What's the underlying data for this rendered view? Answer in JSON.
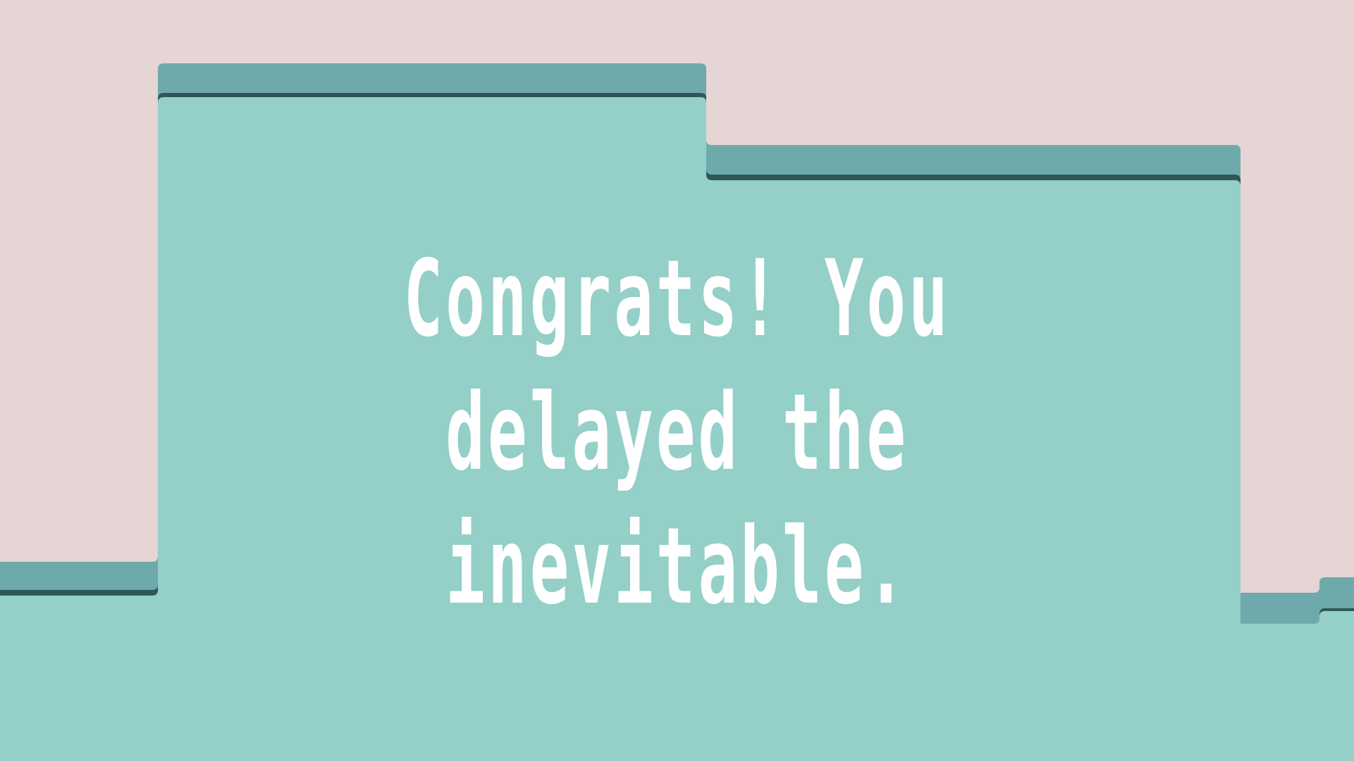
{
  "scene": {
    "message_lines": [
      "Congrats! You",
      "delayed the",
      "inevitable."
    ]
  },
  "colors": {
    "background": "#e5d5d5",
    "terrain_fill": "#94cfc8",
    "terrain_edge": "#6eaaab",
    "terrain_shadow": "#2f5759",
    "text": "#ffffff"
  }
}
